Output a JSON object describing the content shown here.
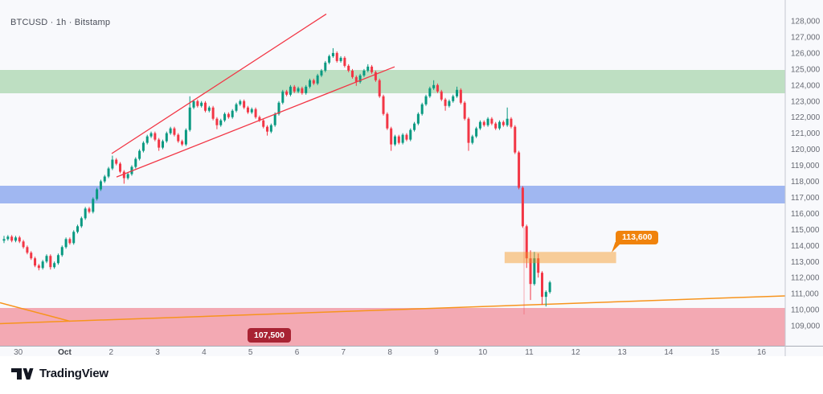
{
  "header": {
    "symbol_title": "BTCUSD · 1h · Bitstamp"
  },
  "footer": {
    "brand": "TradingView"
  },
  "chart_data": {
    "type": "candlestick",
    "symbol": "BTCUSD",
    "interval": "1h",
    "exchange": "Bitstamp",
    "background": "#f8f9fc",
    "axis_line_colors": {
      "horizontal": "#a9adb8",
      "vertical": "#c5c8d0"
    },
    "y_axis": {
      "tick_prices": [
        128,
        127,
        126,
        125,
        124,
        123,
        122,
        121,
        120,
        119,
        118,
        117,
        116,
        115,
        114,
        113,
        112,
        111,
        110,
        109
      ],
      "tick_labels": [
        "128,000",
        "127,000",
        "126,000",
        "125,000",
        "124,000",
        "123,000",
        "122,000",
        "121,000",
        "120,000",
        "119,000",
        "118,000",
        "117,000",
        "116,000",
        "115,000",
        "114,000",
        "113,000",
        "112,000",
        "111,000",
        "110,000",
        "109,000"
      ],
      "visible_range_usd": [
        107720,
        129300
      ]
    },
    "x_axis": {
      "unit": "days since Sep 30 00:00",
      "tick_days": [
        0,
        1,
        2,
        3,
        4,
        5,
        6,
        7,
        8,
        9,
        10,
        11,
        12,
        13,
        14,
        15,
        16
      ],
      "tick_labels": [
        "30",
        "Oct",
        "2",
        "3",
        "4",
        "5",
        "6",
        "7",
        "8",
        "9",
        "10",
        "11",
        "12",
        "13",
        "14",
        "15",
        "16"
      ],
      "visible_range_days": [
        -0.39,
        16.51
      ]
    },
    "bands": [
      {
        "name": "resistance-band-green",
        "color": "#bedfc2",
        "price_from": 124.95,
        "price_to": 123.5
      },
      {
        "name": "support-band-blue",
        "color": "#a0b7f1",
        "price_from": 117.72,
        "price_to": 116.62
      },
      {
        "name": "support-band-pink",
        "color": "#f3a9b3",
        "price_from": 110.1,
        "price_to": 107.6
      }
    ],
    "zones": [
      {
        "name": "demand-zone-orange",
        "color": "rgba(247,148,30,0.45)",
        "day_from": 10.47,
        "day_to": 12.87,
        "price_from": 113.6,
        "price_to": 112.9
      }
    ],
    "lines": [
      {
        "name": "wedge-upper-red",
        "color": "#f23645",
        "width": 1.3,
        "d1": 2.012,
        "p1": 119.73,
        "d2": 6.631,
        "p2": 128.43
      },
      {
        "name": "wedge-lower-red",
        "color": "#f23645",
        "width": 1.3,
        "d1": 2.116,
        "p1": 118.27,
        "d2": 8.102,
        "p2": 125.14
      },
      {
        "name": "orange-trend-short",
        "color": "#f7941d",
        "width": 1.5,
        "d1": -0.393,
        "p1": 110.43,
        "d2": 1.113,
        "p2": 109.28
      },
      {
        "name": "orange-trend-long",
        "color": "#f7941d",
        "width": 1.5,
        "d1": -0.393,
        "p1": 109.13,
        "d2": 16.51,
        "p2": 110.86
      },
      {
        "name": "crash-low-vline",
        "color": "rgba(242,54,69,0.40)",
        "width": 1,
        "d1": 10.888,
        "p1": 115.12,
        "d2": 10.888,
        "p2": 109.7
      }
    ],
    "labels": [
      {
        "name": "price-callout-113600",
        "text": "113,600",
        "bg": "#f0830c",
        "fg": "#ffffff"
      },
      {
        "name": "price-callout-107500",
        "text": "107,500",
        "bg": "#a82333",
        "fg": "#ffffff"
      }
    ],
    "candles": {
      "unit": "USD thousands",
      "up_color": "#089981",
      "down_color": "#f23645",
      "start_day": -0.306,
      "step_days": 0.08333,
      "first_open": 114.3,
      "note": "entries are [close, high, low]; 0 means auto wick from body",
      "ohlc": [
        [
          114.4,
          114.6,
          114.15
        ],
        [
          114.55,
          0,
          0
        ],
        [
          114.3,
          0,
          0
        ],
        [
          114.5,
          0,
          0
        ],
        [
          114.25,
          0,
          0
        ],
        [
          113.9,
          0,
          0
        ],
        [
          113.55,
          0,
          0
        ],
        [
          113.2,
          0,
          0
        ],
        [
          112.75,
          0,
          0
        ],
        [
          112.6,
          0,
          112.45
        ],
        [
          113.0,
          0,
          0
        ],
        [
          113.35,
          0,
          0
        ],
        [
          112.65,
          0,
          112.5
        ],
        [
          112.9,
          0,
          0
        ],
        [
          113.4,
          0,
          0
        ],
        [
          113.9,
          0,
          0
        ],
        [
          114.4,
          0,
          0
        ],
        [
          114.15,
          0,
          0
        ],
        [
          114.85,
          0,
          0
        ],
        [
          115.2,
          0,
          0
        ],
        [
          115.7,
          0,
          0
        ],
        [
          116.3,
          0,
          0
        ],
        [
          116.1,
          0,
          0
        ],
        [
          116.9,
          0,
          0
        ],
        [
          117.5,
          0,
          0
        ],
        [
          118.0,
          0,
          0
        ],
        [
          118.3,
          0,
          0
        ],
        [
          118.8,
          0,
          0
        ],
        [
          119.35,
          119.6,
          0
        ],
        [
          119.1,
          0,
          0
        ],
        [
          118.6,
          0,
          0
        ],
        [
          118.2,
          0,
          117.85
        ],
        [
          118.45,
          0,
          0
        ],
        [
          118.9,
          0,
          0
        ],
        [
          119.4,
          0,
          0
        ],
        [
          119.9,
          0,
          0
        ],
        [
          120.4,
          0,
          0
        ],
        [
          120.8,
          0,
          0
        ],
        [
          121.0,
          0,
          0
        ],
        [
          120.6,
          0,
          0
        ],
        [
          120.1,
          0,
          119.9
        ],
        [
          120.5,
          0,
          0
        ],
        [
          121.0,
          0,
          0
        ],
        [
          121.3,
          0,
          0
        ],
        [
          120.9,
          0,
          0
        ],
        [
          120.5,
          0,
          0
        ],
        [
          120.3,
          0,
          0
        ],
        [
          121.2,
          0,
          0
        ],
        [
          122.6,
          123.3,
          0
        ],
        [
          123.0,
          0,
          0
        ],
        [
          122.7,
          0,
          0
        ],
        [
          122.9,
          0,
          0
        ],
        [
          122.4,
          0,
          0
        ],
        [
          122.6,
          0,
          0
        ],
        [
          121.9,
          0,
          0
        ],
        [
          121.5,
          0,
          121.25
        ],
        [
          121.8,
          0,
          0
        ],
        [
          122.2,
          0,
          0
        ],
        [
          122.0,
          0,
          0
        ],
        [
          122.4,
          0,
          0
        ],
        [
          122.8,
          0,
          0
        ],
        [
          123.0,
          0,
          0
        ],
        [
          122.6,
          0,
          0
        ],
        [
          122.3,
          0,
          0
        ],
        [
          122.5,
          0,
          0
        ],
        [
          122.0,
          0,
          0
        ],
        [
          121.8,
          0,
          0
        ],
        [
          121.4,
          0,
          0
        ],
        [
          121.1,
          0,
          120.85
        ],
        [
          121.5,
          0,
          0
        ],
        [
          122.2,
          0,
          0
        ],
        [
          122.9,
          0,
          0
        ],
        [
          123.6,
          0,
          0
        ],
        [
          123.4,
          0,
          0
        ],
        [
          123.9,
          0,
          0
        ],
        [
          123.6,
          0,
          0
        ],
        [
          123.8,
          0,
          0
        ],
        [
          123.5,
          0,
          0
        ],
        [
          123.9,
          0,
          0
        ],
        [
          124.3,
          0,
          0
        ],
        [
          124.1,
          0,
          0
        ],
        [
          124.6,
          0,
          0
        ],
        [
          124.9,
          0,
          0
        ],
        [
          125.4,
          0,
          0
        ],
        [
          125.8,
          0,
          0
        ],
        [
          126.0,
          126.3,
          0
        ],
        [
          125.5,
          0,
          0
        ],
        [
          125.7,
          0,
          0
        ],
        [
          125.2,
          0,
          0
        ],
        [
          124.9,
          0,
          0
        ],
        [
          124.5,
          0,
          0
        ],
        [
          124.2,
          0,
          123.95
        ],
        [
          124.6,
          0,
          0
        ],
        [
          124.9,
          0,
          0
        ],
        [
          125.15,
          125.3,
          0
        ],
        [
          124.8,
          0,
          0
        ],
        [
          124.3,
          0,
          0
        ],
        [
          123.3,
          0,
          0
        ],
        [
          122.2,
          0,
          0
        ],
        [
          121.3,
          0,
          0
        ],
        [
          120.3,
          0,
          119.9
        ],
        [
          120.8,
          0,
          0
        ],
        [
          120.4,
          0,
          0
        ],
        [
          120.9,
          0,
          0
        ],
        [
          120.6,
          0,
          0
        ],
        [
          121.2,
          0,
          0
        ],
        [
          121.6,
          0,
          0
        ],
        [
          122.2,
          0,
          0
        ],
        [
          122.8,
          0,
          0
        ],
        [
          123.3,
          0,
          0
        ],
        [
          123.8,
          0,
          0
        ],
        [
          124.0,
          124.3,
          0
        ],
        [
          123.6,
          0,
          0
        ],
        [
          123.1,
          0,
          0
        ],
        [
          122.7,
          0,
          122.4
        ],
        [
          123.0,
          0,
          0
        ],
        [
          123.3,
          0,
          0
        ],
        [
          123.7,
          123.9,
          0
        ],
        [
          122.9,
          0,
          0
        ],
        [
          121.9,
          0,
          0
        ],
        [
          120.4,
          0,
          119.9
        ],
        [
          120.8,
          0,
          0
        ],
        [
          121.3,
          0,
          0
        ],
        [
          121.7,
          0,
          0
        ],
        [
          121.5,
          0,
          0
        ],
        [
          121.9,
          0,
          0
        ],
        [
          121.6,
          0,
          0
        ],
        [
          121.3,
          0,
          0
        ],
        [
          121.7,
          0,
          0
        ],
        [
          121.5,
          0,
          0
        ],
        [
          121.9,
          122.6,
          0
        ],
        [
          121.4,
          0,
          0
        ],
        [
          119.8,
          0,
          0
        ],
        [
          117.6,
          0,
          0
        ],
        [
          115.2,
          0,
          0
        ],
        [
          113.2,
          0,
          112.6
        ],
        [
          111.6,
          113.7,
          110.6
        ],
        [
          113.2,
          113.6,
          0
        ],
        [
          112.3,
          113.5,
          112.0
        ],
        [
          110.8,
          0,
          110.3
        ],
        [
          111.1,
          0,
          110.2
        ],
        [
          111.7,
          0,
          0
        ]
      ]
    }
  }
}
